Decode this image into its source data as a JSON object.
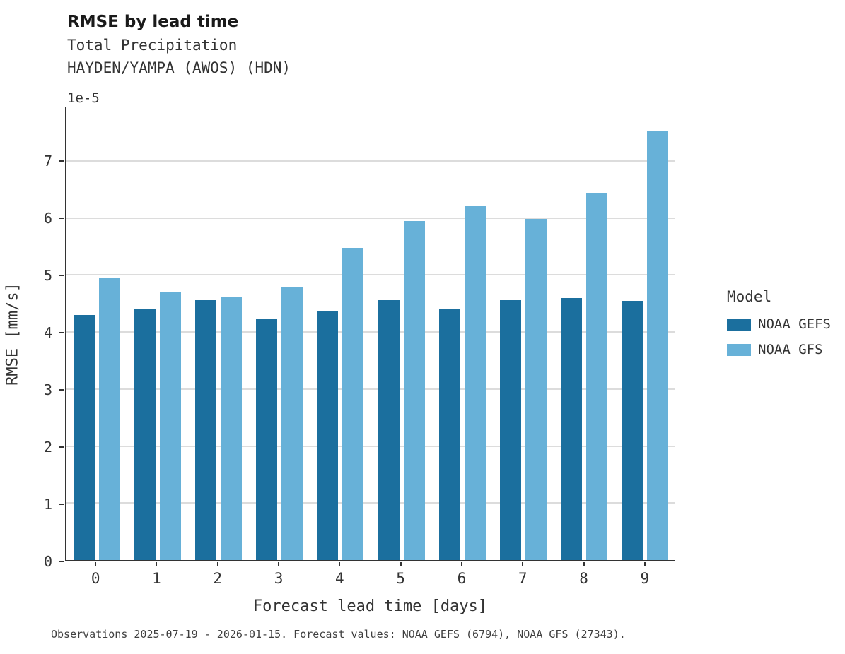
{
  "chart_data": {
    "type": "bar",
    "title": "RMSE by lead time",
    "subtitle1": "Total Precipitation",
    "subtitle2": "HAYDEN/YAMPA (AWOS) (HDN)",
    "y_offset_label": "1e-5",
    "xlabel": "Forecast lead time [days]",
    "ylabel": "RMSE [mm/s]",
    "categories": [
      "0",
      "1",
      "2",
      "3",
      "4",
      "5",
      "6",
      "7",
      "8",
      "9"
    ],
    "series": [
      {
        "name": "NOAA GEFS",
        "color": "#1b6f9e",
        "values": [
          4.3,
          4.41,
          4.56,
          4.23,
          4.37,
          4.56,
          4.41,
          4.56,
          4.6,
          4.54
        ]
      },
      {
        "name": "NOAA GFS",
        "color": "#67b1d8",
        "values": [
          4.94,
          4.7,
          4.62,
          4.8,
          5.48,
          5.95,
          6.21,
          5.98,
          6.44,
          7.52
        ]
      }
    ],
    "ylim": [
      0,
      7.94
    ],
    "yticks": [
      0,
      1,
      2,
      3,
      4,
      5,
      6,
      7
    ],
    "grid": "horizontal",
    "legend": {
      "title": "Model",
      "position": "right"
    },
    "caption": "Observations 2025-07-19 - 2026-01-15. Forecast values: NOAA GEFS (6794), NOAA GFS (27343)."
  }
}
